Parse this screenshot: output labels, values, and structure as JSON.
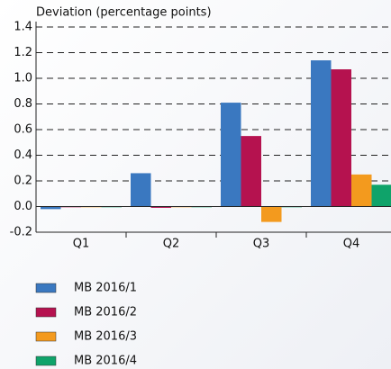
{
  "chart_data": {
    "type": "bar",
    "y_label": "Deviation (percentage points)",
    "categories": [
      "Q1",
      "Q2",
      "Q3",
      "Q4"
    ],
    "series": [
      {
        "name": "MB 2016/1",
        "color": "#3a78c0",
        "values": [
          -0.02,
          0.26,
          0.81,
          1.14
        ]
      },
      {
        "name": "MB 2016/2",
        "color": "#b5124f",
        "values": [
          0,
          -0.01,
          0.55,
          1.07
        ]
      },
      {
        "name": "MB 2016/3",
        "color": "#f39a1e",
        "values": [
          0,
          0,
          -0.12,
          0.25
        ]
      },
      {
        "name": "MB 2016/4",
        "color": "#0fa36a",
        "values": [
          0,
          0,
          0,
          0.17
        ]
      }
    ],
    "ylim": [
      -0.2,
      1.4
    ],
    "yticks": [
      -0.2,
      {
        "value": 0,
        "label": "0.0"
      },
      0.2,
      0.4,
      0.6,
      0.8,
      {
        "value": 1,
        "label": "1.0"
      },
      1.2,
      1.4
    ],
    "grid": true
  }
}
